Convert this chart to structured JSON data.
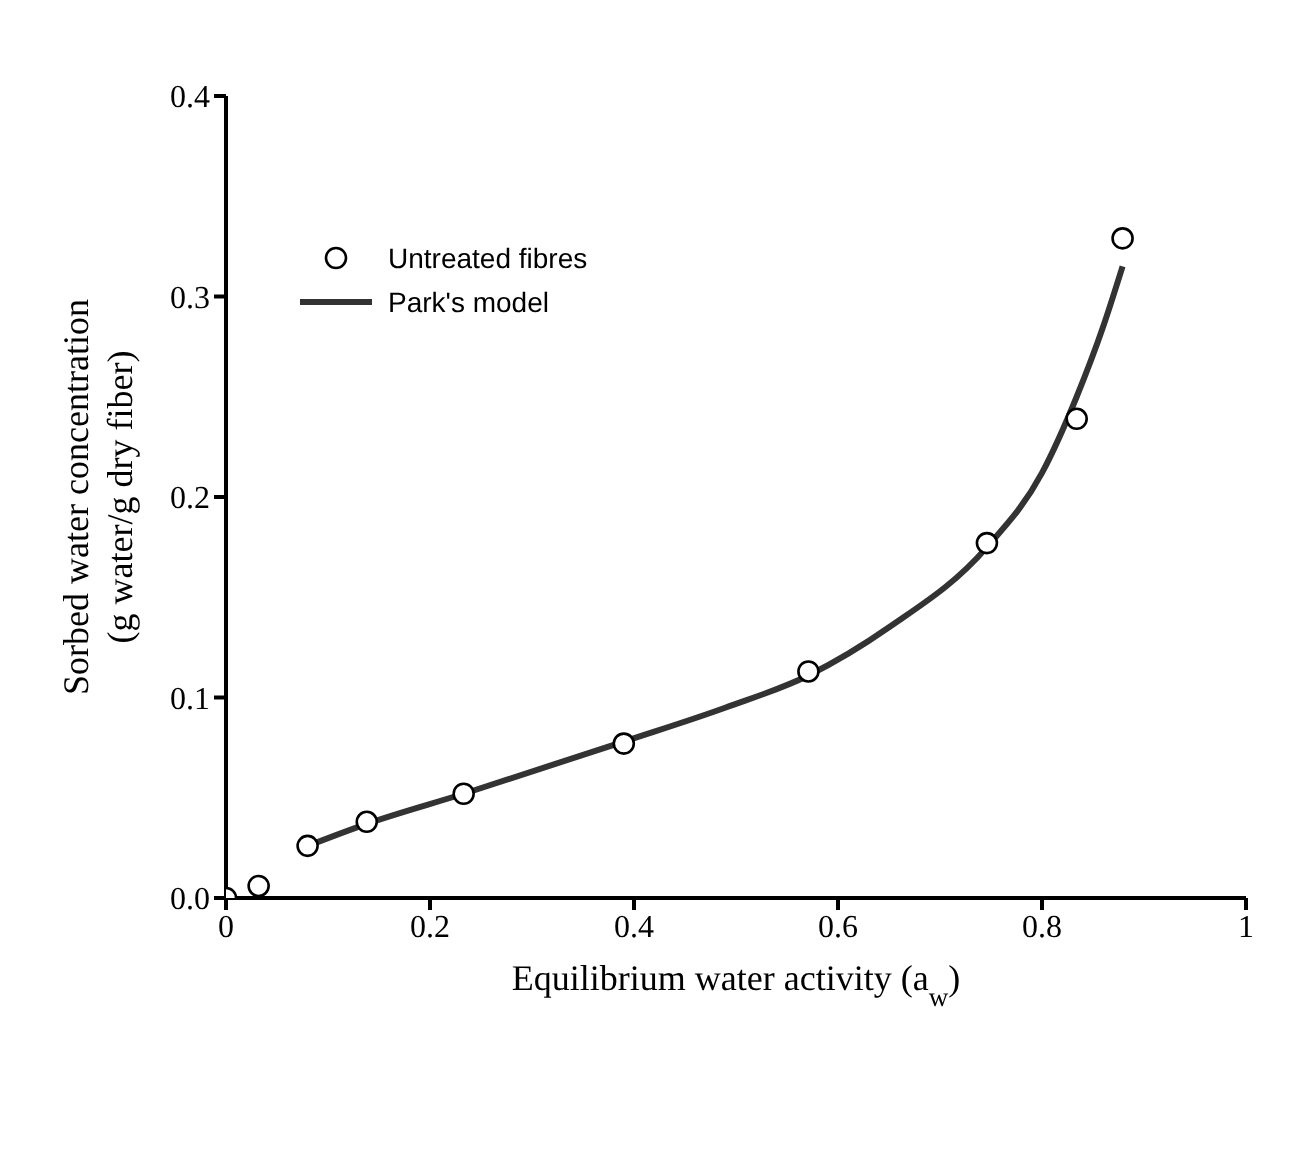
{
  "chart_data": {
    "type": "scatter",
    "xlabel": "Equilibrium water activity (a$_{w}$)",
    "ylabel": "Sorbed water concentration\n(g water/g dry fiber)",
    "xlim": [
      0,
      1
    ],
    "xticks": [
      0,
      0.2,
      0.4,
      0.6,
      0.8,
      1
    ],
    "ylim": [
      0,
      0.4
    ],
    "yticks": [
      {
        "value": 0,
        "label": "0.0"
      },
      {
        "value": 0.1,
        "label": "0.1"
      },
      {
        "value": 0.2,
        "label": "0.2"
      },
      {
        "value": 0.3,
        "label": "0.3"
      },
      {
        "value": 0.4,
        "label": "0.4"
      }
    ],
    "series": [
      {
        "name": "Untreated fibres",
        "color": "#000000",
        "marker": "circle",
        "x": [
          0,
          0.032,
          0.08,
          0.138,
          0.233,
          0.39,
          0.571,
          0.746,
          0.834,
          0.879
        ],
        "values": [
          0,
          0.006,
          0.026,
          0.038,
          0.052,
          0.077,
          0.113,
          0.177,
          0.239,
          0.329
        ]
      },
      {
        "name": "Park's model",
        "type": "line",
        "color": "#333333",
        "marker": "none",
        "line_style": "solid",
        "x": [
          0.08,
          0.138,
          0.233,
          0.39,
          0.49,
          0.571,
          0.65,
          0.746,
          0.8,
          0.834,
          0.86,
          0.879
        ],
        "values": [
          0.026,
          0.037,
          0.052,
          0.078,
          0.095,
          0.111,
          0.135,
          0.175,
          0.212,
          0.25,
          0.285,
          0.315
        ]
      }
    ],
    "grid": false,
    "legend": "top left"
  }
}
